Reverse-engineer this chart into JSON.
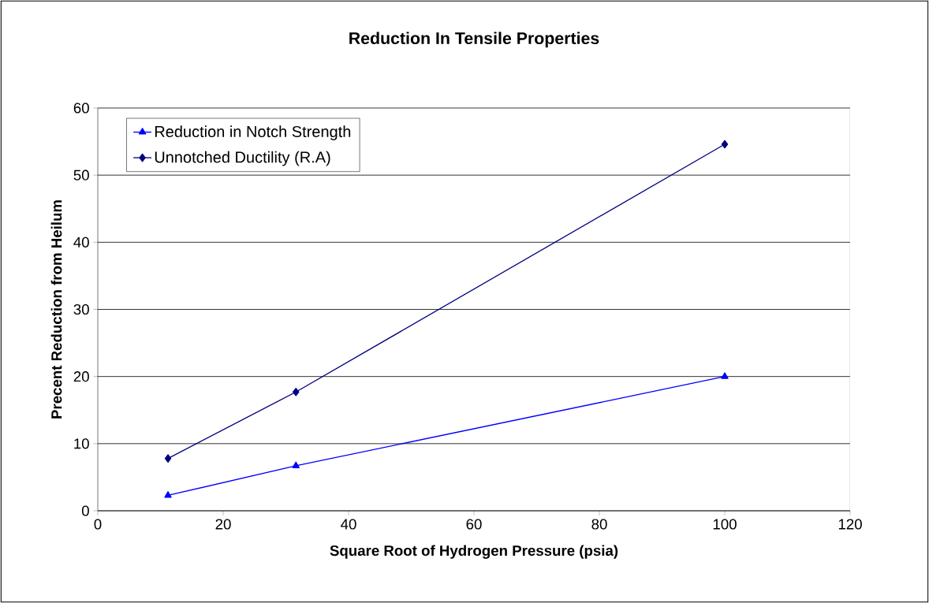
{
  "chart_data": {
    "type": "line",
    "title": "Reduction In Tensile Properties",
    "xlabel": "Square Root of Hydrogen Pressure (psia)",
    "ylabel": "Precent Reduction from Heilum",
    "x": [
      11.2,
      31.6,
      100
    ],
    "series": [
      {
        "name": "Reduction in Notch Strength",
        "color": "#0000ff",
        "marker": "triangle",
        "values": [
          2.3,
          6.7,
          20.0
        ]
      },
      {
        "name": "Unnotched Ductility (R.A)",
        "color": "#000080",
        "marker": "diamond",
        "values": [
          7.8,
          17.7,
          54.6
        ]
      }
    ],
    "xlim": [
      0,
      120
    ],
    "xticks": [
      0,
      20,
      40,
      60,
      80,
      100,
      120
    ],
    "ylim": [
      0,
      60
    ],
    "yticks": [
      0,
      10,
      20,
      30,
      40,
      50,
      60
    ],
    "grid": "y",
    "legend": "top left",
    "line_style": "solid"
  }
}
